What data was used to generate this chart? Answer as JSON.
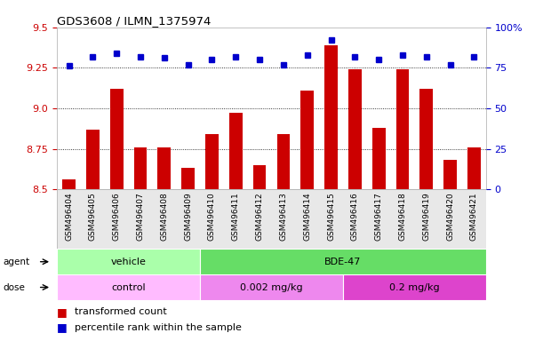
{
  "title": "GDS3608 / ILMN_1375974",
  "samples": [
    "GSM496404",
    "GSM496405",
    "GSM496406",
    "GSM496407",
    "GSM496408",
    "GSM496409",
    "GSM496410",
    "GSM496411",
    "GSM496412",
    "GSM496413",
    "GSM496414",
    "GSM496415",
    "GSM496416",
    "GSM496417",
    "GSM496418",
    "GSM496419",
    "GSM496420",
    "GSM496421"
  ],
  "bar_values": [
    8.56,
    8.87,
    9.12,
    8.76,
    8.76,
    8.63,
    8.84,
    8.97,
    8.65,
    8.84,
    9.11,
    9.39,
    9.24,
    8.88,
    9.24,
    9.12,
    8.68,
    8.76
  ],
  "dot_values": [
    76,
    82,
    84,
    82,
    81,
    77,
    80,
    82,
    80,
    77,
    83,
    92,
    82,
    80,
    83,
    82,
    77,
    82
  ],
  "bar_color": "#cc0000",
  "dot_color": "#0000cc",
  "ylim_left": [
    8.5,
    9.5
  ],
  "ylim_right": [
    0,
    100
  ],
  "yticks_left": [
    8.5,
    8.75,
    9.0,
    9.25,
    9.5
  ],
  "yticks_right": [
    0,
    25,
    50,
    75,
    100
  ],
  "ytick_labels_right": [
    "0",
    "25",
    "50",
    "75",
    "100%"
  ],
  "grid_values": [
    8.75,
    9.0,
    9.25
  ],
  "agent_groups": [
    {
      "label": "vehicle",
      "start": 0,
      "end": 6
    },
    {
      "label": "BDE-47",
      "start": 6,
      "end": 18
    }
  ],
  "agent_colors": [
    "#aaffaa",
    "#66dd66"
  ],
  "dose_groups": [
    {
      "label": "control",
      "start": 0,
      "end": 6
    },
    {
      "label": "0.002 mg/kg",
      "start": 6,
      "end": 12
    },
    {
      "label": "0.2 mg/kg",
      "start": 12,
      "end": 18
    }
  ],
  "dose_colors": [
    "#ffbbff",
    "#ee88ee",
    "#dd44cc"
  ],
  "legend_bar_label": "transformed count",
  "legend_dot_label": "percentile rank within the sample",
  "plot_bg": "#ffffff",
  "fig_bg": "#ffffff"
}
